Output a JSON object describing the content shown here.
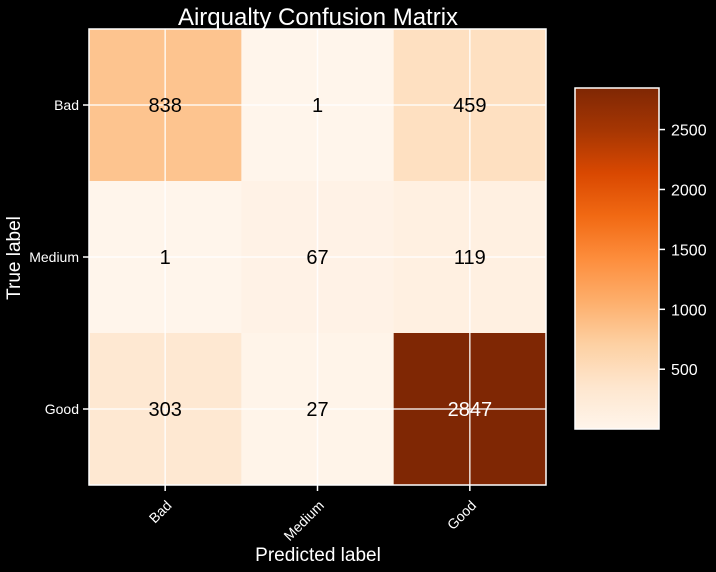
{
  "chart_data": {
    "type": "heatmap",
    "title": "Airqualty Confusion Matrix",
    "xlabel": "Predicted label",
    "ylabel": "True label",
    "x_categories": [
      "Bad",
      "Medium",
      "Good"
    ],
    "y_categories": [
      "Bad",
      "Medium",
      "Good"
    ],
    "matrix": [
      [
        838,
        1,
        459
      ],
      [
        1,
        67,
        119
      ],
      [
        303,
        27,
        2847
      ]
    ],
    "colormap": "Oranges",
    "colormap_stops": [
      "#fff5eb",
      "#fee6ce",
      "#fdd0a2",
      "#fdae6b",
      "#fd8d3c",
      "#f16913",
      "#d94801",
      "#a63603",
      "#7f2704"
    ],
    "value_range": [
      1,
      2847
    ],
    "colorbar_ticks": [
      500,
      1000,
      1500,
      2000,
      2500
    ],
    "grid": true,
    "text_colors": {
      "light": "#ffffff",
      "dark": "#000000"
    }
  }
}
